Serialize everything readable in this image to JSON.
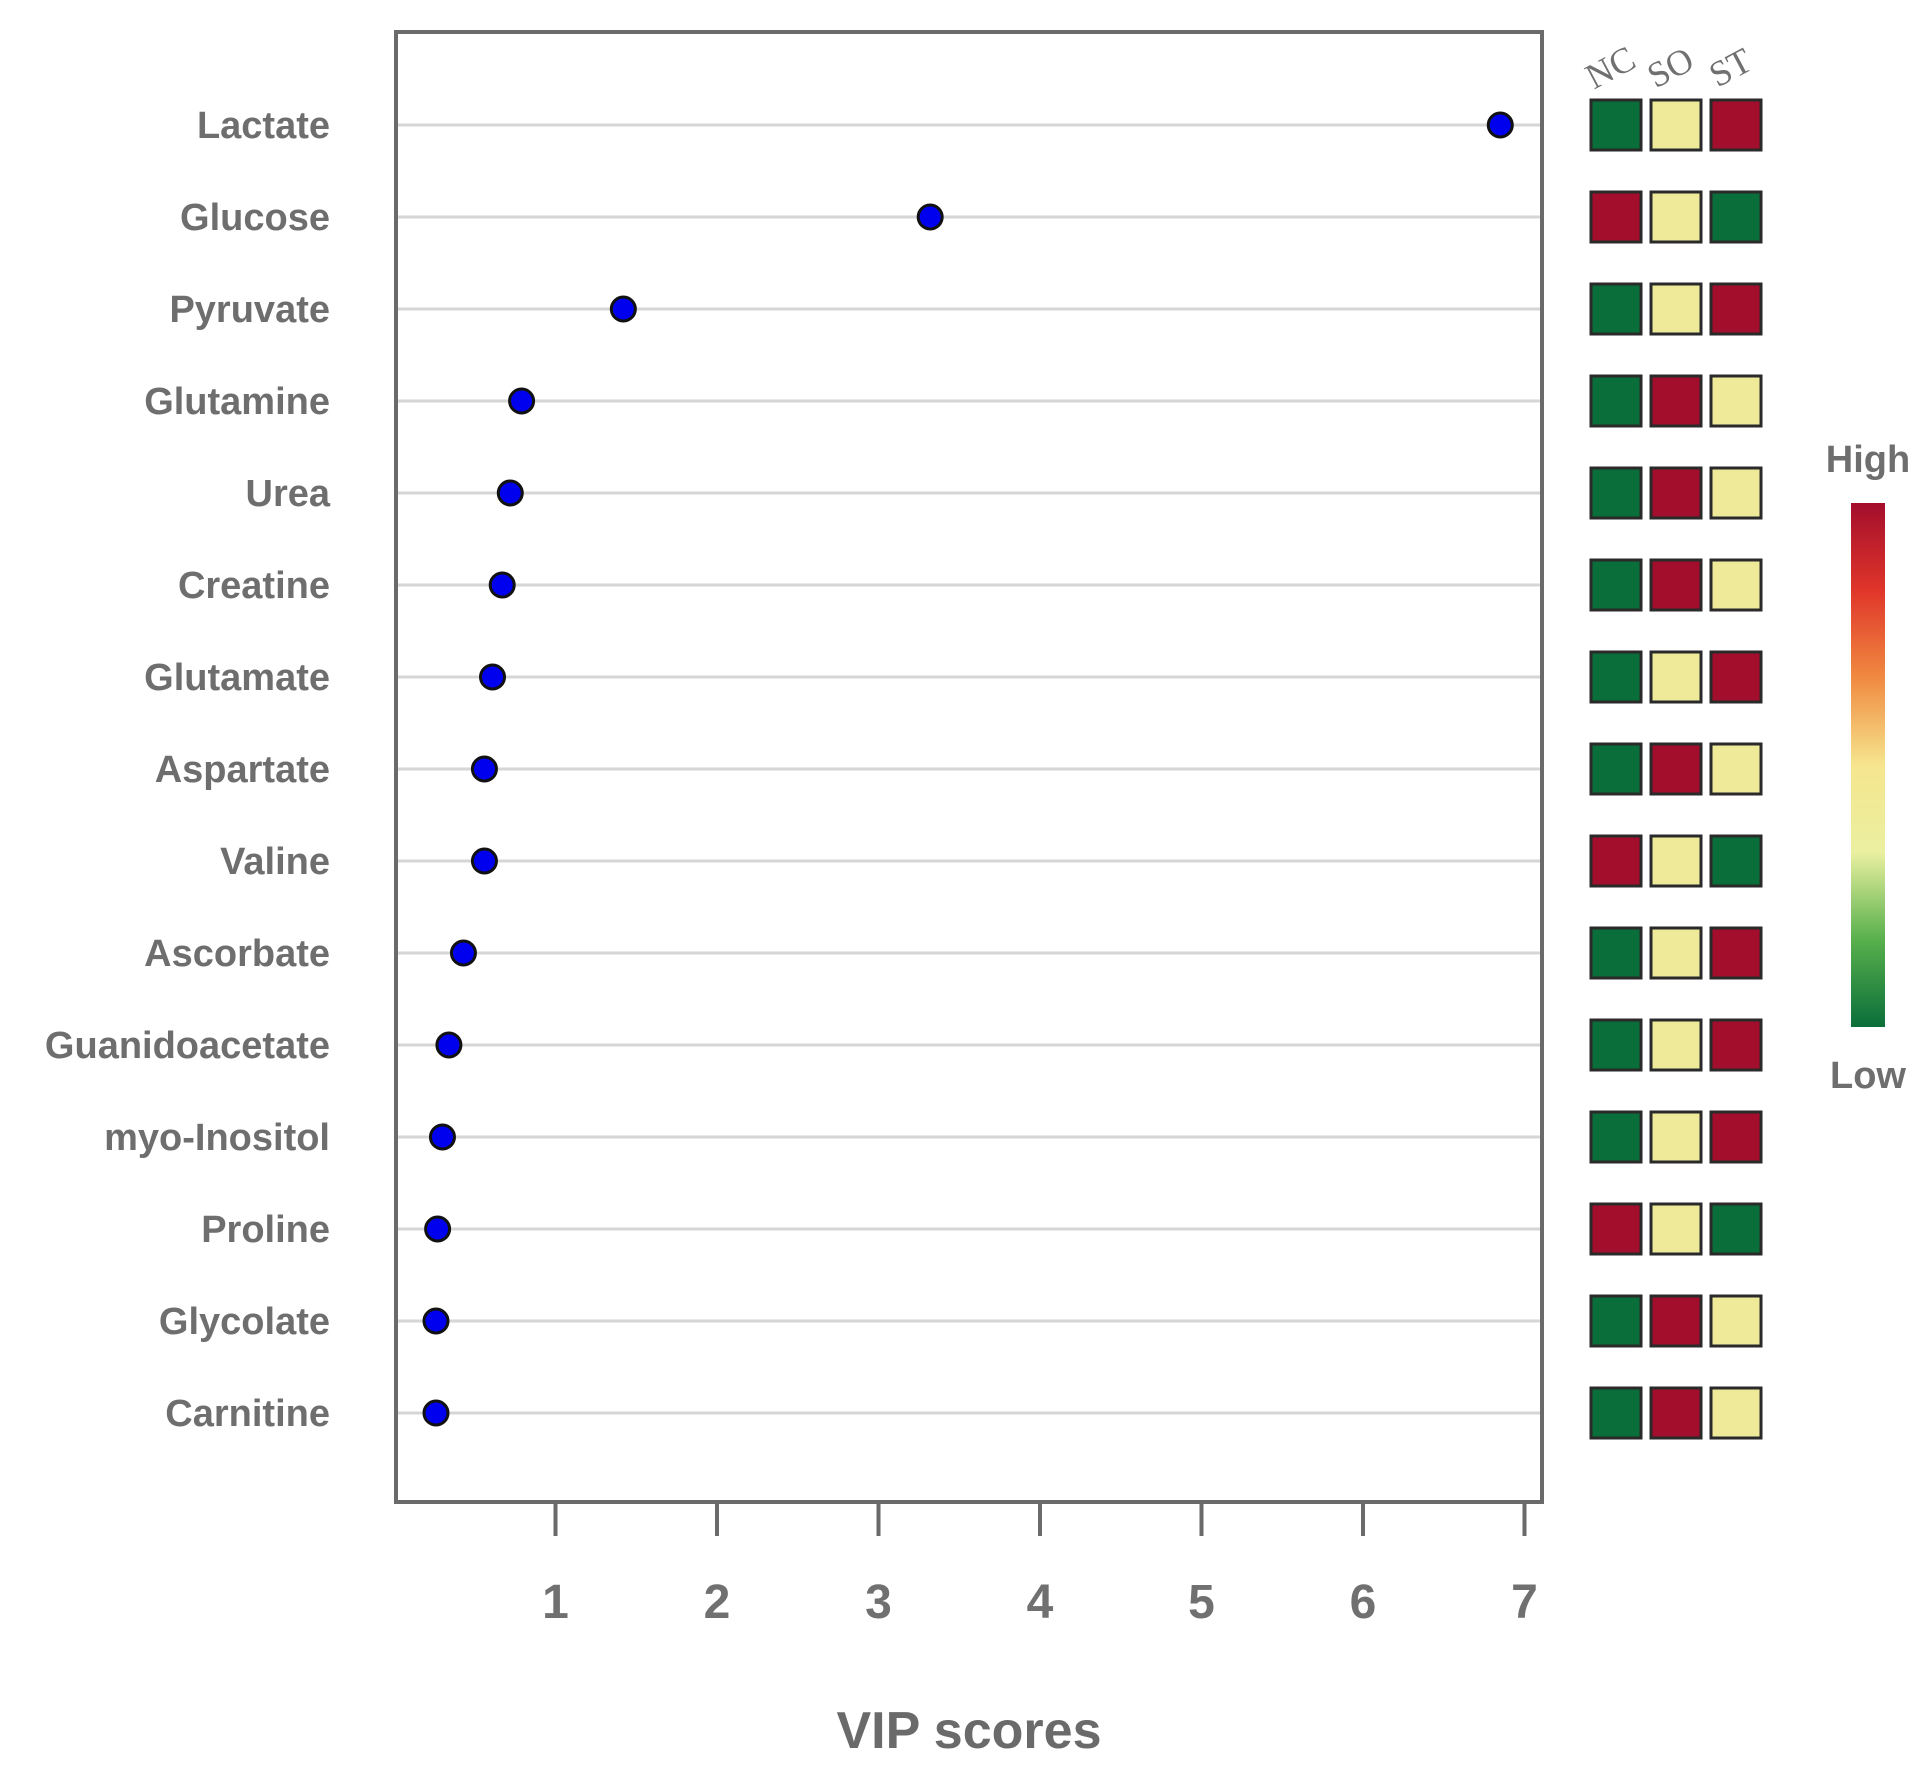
{
  "chart_data": {
    "type": "scatter",
    "xlabel": "VIP scores",
    "xticks": [
      "1",
      "2",
      "3",
      "4",
      "5",
      "6",
      "7"
    ],
    "xlim": [
      0,
      7.1
    ],
    "categories": [
      "Lactate",
      "Glucose",
      "Pyruvate",
      "Glutamine",
      "Urea",
      "Creatine",
      "Glutamate",
      "Aspartate",
      "Valine",
      "Ascorbate",
      "Guanidoacetate",
      "myo-Inositol",
      "Proline",
      "Glycolate",
      "Carnitine"
    ],
    "values": [
      6.85,
      3.32,
      1.42,
      0.79,
      0.72,
      0.67,
      0.61,
      0.56,
      0.56,
      0.43,
      0.34,
      0.3,
      0.27,
      0.26,
      0.26
    ],
    "point_color": "#0000ee",
    "grid": "horizontal",
    "heatmap": {
      "groups": [
        "NC",
        "SO",
        "ST"
      ],
      "levels": [
        [
          "low",
          "mid",
          "high"
        ],
        [
          "high",
          "mid",
          "low"
        ],
        [
          "low",
          "mid",
          "high"
        ],
        [
          "low",
          "high",
          "mid"
        ],
        [
          "low",
          "high",
          "mid"
        ],
        [
          "low",
          "high",
          "mid"
        ],
        [
          "low",
          "mid",
          "high"
        ],
        [
          "low",
          "high",
          "mid"
        ],
        [
          "high",
          "mid",
          "low"
        ],
        [
          "low",
          "mid",
          "high"
        ],
        [
          "low",
          "mid",
          "high"
        ],
        [
          "low",
          "mid",
          "high"
        ],
        [
          "high",
          "mid",
          "low"
        ],
        [
          "low",
          "high",
          "mid"
        ],
        [
          "low",
          "high",
          "mid"
        ]
      ],
      "colors": {
        "low": "#0a6e3a",
        "mid": "#efea9a",
        "high": "#a30e2c"
      }
    },
    "color_scale": {
      "high_label": "High",
      "low_label": "Low",
      "stops": [
        "#0a6e3a",
        "#58b04c",
        "#eaf0a0",
        "#f6e58e",
        "#f08a40",
        "#e0352a",
        "#a30e2c"
      ]
    }
  }
}
